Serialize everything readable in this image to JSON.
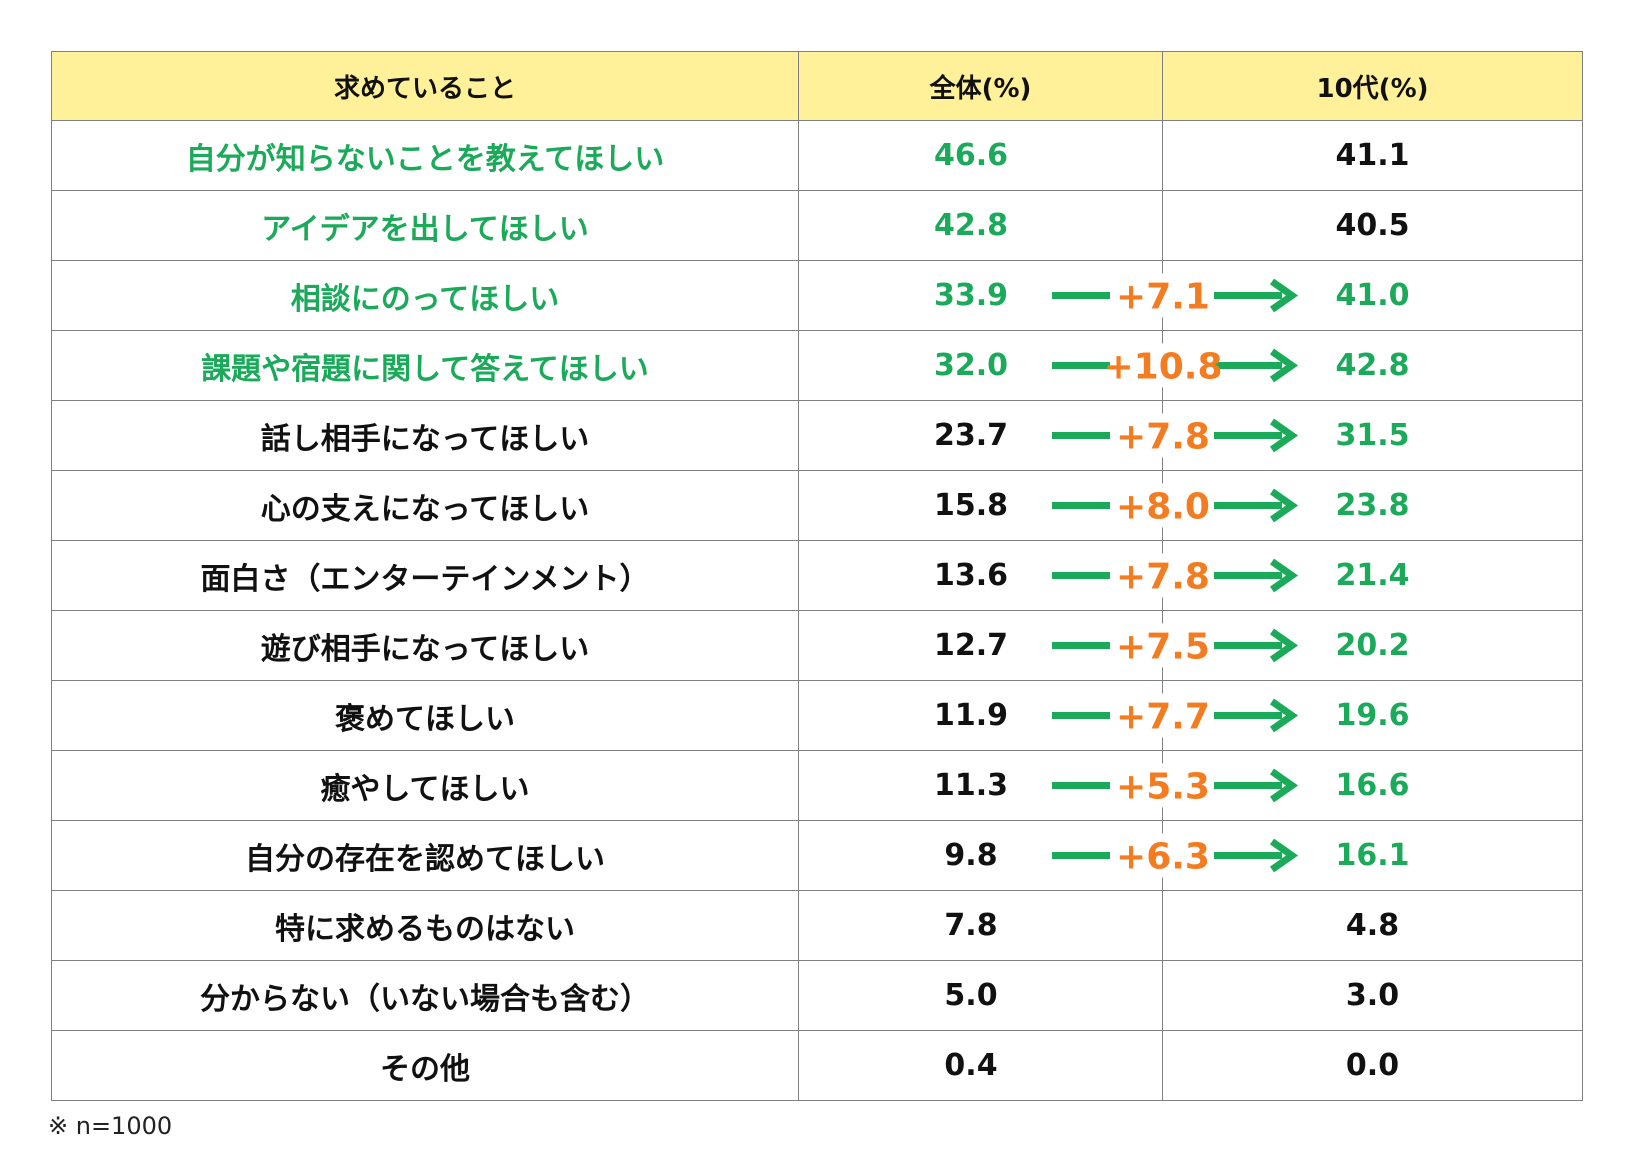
{
  "chart_data": {
    "type": "table",
    "columns": [
      "求めていること",
      "全体(%)",
      "10代(%)"
    ],
    "rows": [
      {
        "label": "自分が知らないことを教えてほしい",
        "all": "46.6",
        "teens": "41.1",
        "diff": "",
        "label_green": true,
        "all_green": true,
        "teens_green": false
      },
      {
        "label": "アイデアを出してほしい",
        "all": "42.8",
        "teens": "40.5",
        "diff": "",
        "label_green": true,
        "all_green": true,
        "teens_green": false
      },
      {
        "label": "相談にのってほしい",
        "all": "33.9",
        "teens": "41.0",
        "diff": "+7.1",
        "label_green": true,
        "all_green": true,
        "teens_green": true
      },
      {
        "label": "課題や宿題に関して答えてほしい",
        "all": "32.0",
        "teens": "42.8",
        "diff": "+10.8",
        "label_green": true,
        "all_green": true,
        "teens_green": true
      },
      {
        "label": "話し相手になってほしい",
        "all": "23.7",
        "teens": "31.5",
        "diff": "+7.8",
        "label_green": false,
        "all_green": false,
        "teens_green": true
      },
      {
        "label": "心の支えになってほしい",
        "all": "15.8",
        "teens": "23.8",
        "diff": "+8.0",
        "label_green": false,
        "all_green": false,
        "teens_green": true
      },
      {
        "label": "面白さ（エンターテインメント）",
        "all": "13.6",
        "teens": "21.4",
        "diff": "+7.8",
        "label_green": false,
        "all_green": false,
        "teens_green": true
      },
      {
        "label": "遊び相手になってほしい",
        "all": "12.7",
        "teens": "20.2",
        "diff": "+7.5",
        "label_green": false,
        "all_green": false,
        "teens_green": true
      },
      {
        "label": "褒めてほしい",
        "all": "11.9",
        "teens": "19.6",
        "diff": "+7.7",
        "label_green": false,
        "all_green": false,
        "teens_green": true
      },
      {
        "label": "癒やしてほしい",
        "all": "11.3",
        "teens": "16.6",
        "diff": "+5.3",
        "label_green": false,
        "all_green": false,
        "teens_green": true
      },
      {
        "label": "自分の存在を認めてほしい",
        "all": "9.8",
        "teens": "16.1",
        "diff": "+6.3",
        "label_green": false,
        "all_green": false,
        "teens_green": true
      },
      {
        "label": "特に求めるものはない",
        "all": "7.8",
        "teens": "4.8",
        "diff": "",
        "label_green": false,
        "all_green": false,
        "teens_green": false
      },
      {
        "label": "分からない（いない場合も含む）",
        "all": "5.0",
        "teens": "3.0",
        "diff": "",
        "label_green": false,
        "all_green": false,
        "teens_green": false
      },
      {
        "label": "その他",
        "all": "0.4",
        "teens": "0.0",
        "diff": "",
        "label_green": false,
        "all_green": false,
        "teens_green": false
      }
    ],
    "note": "※ n=1000",
    "colors": {
      "header_bg": "#fff19a",
      "green": "#1aaa5a",
      "orange": "#f47c20",
      "border": "#808080"
    }
  }
}
